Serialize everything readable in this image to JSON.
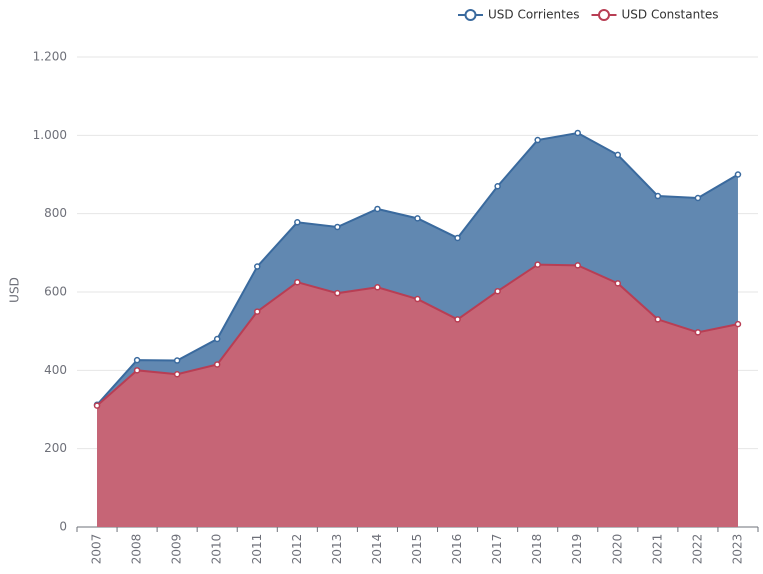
{
  "chart_data": {
    "type": "area",
    "y_label": "USD",
    "categories": [
      "2007",
      "2008",
      "2009",
      "2010",
      "2011",
      "2012",
      "2013",
      "2014",
      "2015",
      "2016",
      "2017",
      "2018",
      "2019",
      "2020",
      "2021",
      "2022",
      "2023"
    ],
    "series": [
      {
        "name": "USD Corrientes",
        "color": "#3a6a9e",
        "values": [
          312,
          426,
          425,
          480,
          665,
          778,
          766,
          812,
          788,
          738,
          870,
          988,
          1006,
          950,
          845,
          840,
          900
        ]
      },
      {
        "name": "USD Constantes",
        "color": "#b83e54",
        "values": [
          310,
          400,
          390,
          415,
          550,
          625,
          597,
          612,
          582,
          530,
          602,
          670,
          668,
          622,
          530,
          497,
          518
        ]
      }
    ],
    "ylim": [
      0,
      1200
    ],
    "yticks": [
      0,
      200,
      400,
      600,
      800,
      {
        "value": 1000,
        "label": "1.000"
      },
      {
        "value": 1200,
        "label": "1.200"
      }
    ],
    "grid": true,
    "legend": "top-right"
  }
}
